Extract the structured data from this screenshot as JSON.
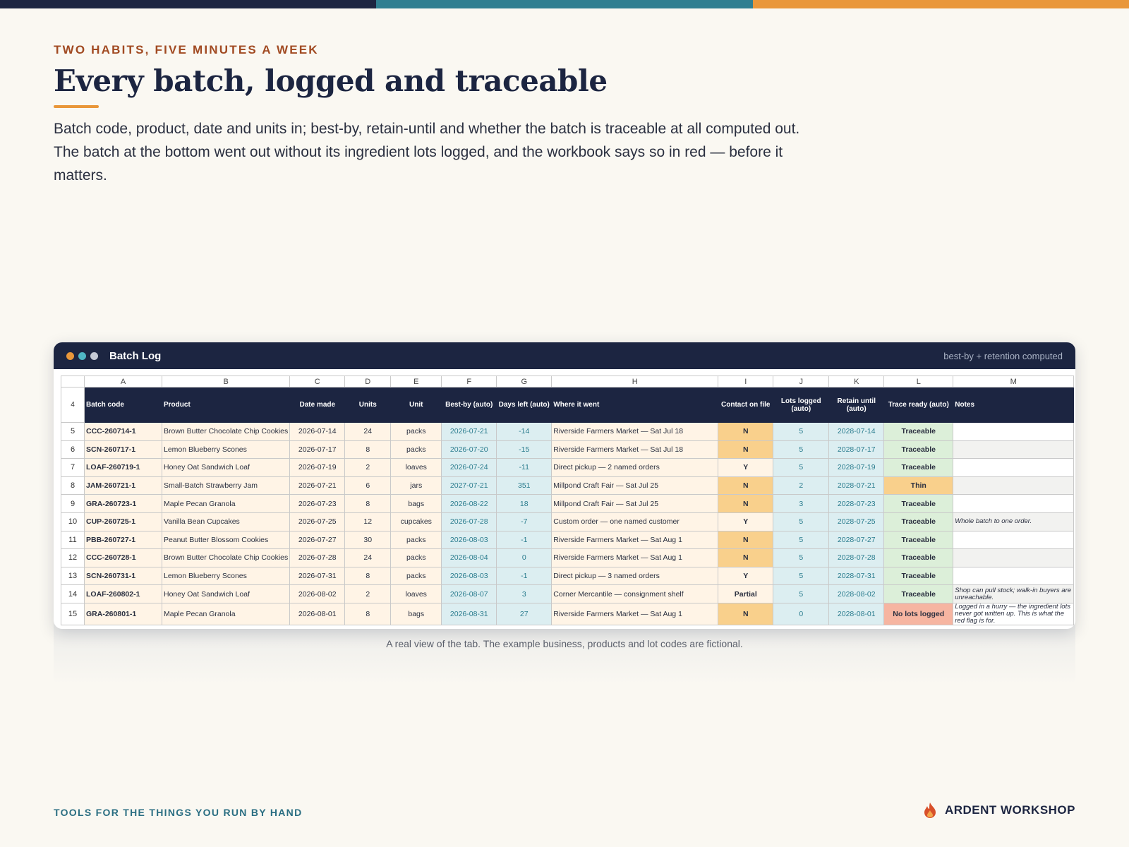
{
  "brand_colors": {
    "navy": "#1c2541",
    "teal": "#2a7c8e",
    "orange": "#e9973a",
    "rust": "#a14a22"
  },
  "eyebrow": "TWO HABITS, FIVE MINUTES A WEEK",
  "headline": "Every batch, logged and traceable",
  "lede": "Batch code, product, date and units in; best-by, retain-until and whether the batch is traceable at all computed out. The batch at the bottom went out without its ingredient lots logged, and the workbook says so in red — before it matters.",
  "window": {
    "title": "Batch Log",
    "note": "best-by + retention computed",
    "dots": [
      "#e9973a",
      "#4fb6c4",
      "#c4c9d4"
    ]
  },
  "sheet": {
    "column_letters": [
      "A",
      "B",
      "C",
      "D",
      "E",
      "F",
      "G",
      "H",
      "I",
      "J",
      "K",
      "L",
      "M"
    ],
    "header_row_number": "4",
    "headers": [
      "Batch code",
      "Product",
      "Date made",
      "Units",
      "Unit",
      "Best-by (auto)",
      "Days left (auto)",
      "Where it went",
      "Contact on file",
      "Lots logged (auto)",
      "Retain until (auto)",
      "Trace ready (auto)",
      "Notes"
    ],
    "rows": [
      {
        "n": "5",
        "code": "CCC-260714-1",
        "product": "Brown Butter Chocolate Chip Cookies",
        "date": "2026-07-14",
        "units": "24",
        "unit": "packs",
        "bestby": "2026-07-21",
        "days": "-14",
        "where": "Riverside Farmers Market — Sat Jul 18",
        "contact": "N",
        "lots": "5",
        "retain": "2028-07-14",
        "trace": "Traceable",
        "notes": ""
      },
      {
        "n": "6",
        "code": "SCN-260717-1",
        "product": "Lemon Blueberry Scones",
        "date": "2026-07-17",
        "units": "8",
        "unit": "packs",
        "bestby": "2026-07-20",
        "days": "-15",
        "where": "Riverside Farmers Market — Sat Jul 18",
        "contact": "N",
        "lots": "5",
        "retain": "2028-07-17",
        "trace": "Traceable",
        "notes": ""
      },
      {
        "n": "7",
        "code": "LOAF-260719-1",
        "product": "Honey Oat Sandwich Loaf",
        "date": "2026-07-19",
        "units": "2",
        "unit": "loaves",
        "bestby": "2026-07-24",
        "days": "-11",
        "where": "Direct pickup — 2 named orders",
        "contact": "Y",
        "lots": "5",
        "retain": "2028-07-19",
        "trace": "Traceable",
        "notes": ""
      },
      {
        "n": "8",
        "code": "JAM-260721-1",
        "product": "Small-Batch Strawberry Jam",
        "date": "2026-07-21",
        "units": "6",
        "unit": "jars",
        "bestby": "2027-07-21",
        "days": "351",
        "where": "Millpond Craft Fair — Sat Jul 25",
        "contact": "N",
        "lots": "2",
        "retain": "2028-07-21",
        "trace": "Thin",
        "notes": ""
      },
      {
        "n": "9",
        "code": "GRA-260723-1",
        "product": "Maple Pecan Granola",
        "date": "2026-07-23",
        "units": "8",
        "unit": "bags",
        "bestby": "2026-08-22",
        "days": "18",
        "where": "Millpond Craft Fair — Sat Jul 25",
        "contact": "N",
        "lots": "3",
        "retain": "2028-07-23",
        "trace": "Traceable",
        "notes": ""
      },
      {
        "n": "10",
        "code": "CUP-260725-1",
        "product": "Vanilla Bean Cupcakes",
        "date": "2026-07-25",
        "units": "12",
        "unit": "cupcakes",
        "bestby": "2026-07-28",
        "days": "-7",
        "where": "Custom order — one named customer",
        "contact": "Y",
        "lots": "5",
        "retain": "2028-07-25",
        "trace": "Traceable",
        "notes": "Whole batch to one order."
      },
      {
        "n": "11",
        "code": "PBB-260727-1",
        "product": "Peanut Butter Blossom Cookies",
        "date": "2026-07-27",
        "units": "30",
        "unit": "packs",
        "bestby": "2026-08-03",
        "days": "-1",
        "where": "Riverside Farmers Market — Sat Aug 1",
        "contact": "N",
        "lots": "5",
        "retain": "2028-07-27",
        "trace": "Traceable",
        "notes": ""
      },
      {
        "n": "12",
        "code": "CCC-260728-1",
        "product": "Brown Butter Chocolate Chip Cookies",
        "date": "2026-07-28",
        "units": "24",
        "unit": "packs",
        "bestby": "2026-08-04",
        "days": "0",
        "where": "Riverside Farmers Market — Sat Aug 1",
        "contact": "N",
        "lots": "5",
        "retain": "2028-07-28",
        "trace": "Traceable",
        "notes": ""
      },
      {
        "n": "13",
        "code": "SCN-260731-1",
        "product": "Lemon Blueberry Scones",
        "date": "2026-07-31",
        "units": "8",
        "unit": "packs",
        "bestby": "2026-08-03",
        "days": "-1",
        "where": "Direct pickup — 3 named orders",
        "contact": "Y",
        "lots": "5",
        "retain": "2028-07-31",
        "trace": "Traceable",
        "notes": ""
      },
      {
        "n": "14",
        "code": "LOAF-260802-1",
        "product": "Honey Oat Sandwich Loaf",
        "date": "2026-08-02",
        "units": "2",
        "unit": "loaves",
        "bestby": "2026-08-07",
        "days": "3",
        "where": "Corner Mercantile — consignment shelf",
        "contact": "Partial",
        "lots": "5",
        "retain": "2028-08-02",
        "trace": "Traceable",
        "notes": "Shop can pull stock; walk-in buyers are unreachable."
      },
      {
        "n": "15",
        "code": "GRA-260801-1",
        "product": "Maple Pecan Granola",
        "date": "2026-08-01",
        "units": "8",
        "unit": "bags",
        "bestby": "2026-08-31",
        "days": "27",
        "where": "Riverside Farmers Market — Sat Aug 1",
        "contact": "N",
        "lots": "0",
        "retain": "2028-08-01",
        "trace": "No lots logged",
        "notes": "Logged in a hurry — the ingredient lots never got written up. This is what the red flag is for."
      }
    ]
  },
  "caption": "A real view of the tab. The example business, products and lot codes are fictional.",
  "footer": {
    "tagline": "TOOLS FOR THE THINGS YOU RUN BY HAND",
    "brand": "ARDENT WORKSHOP",
    "brand_icon": "flame-icon"
  }
}
